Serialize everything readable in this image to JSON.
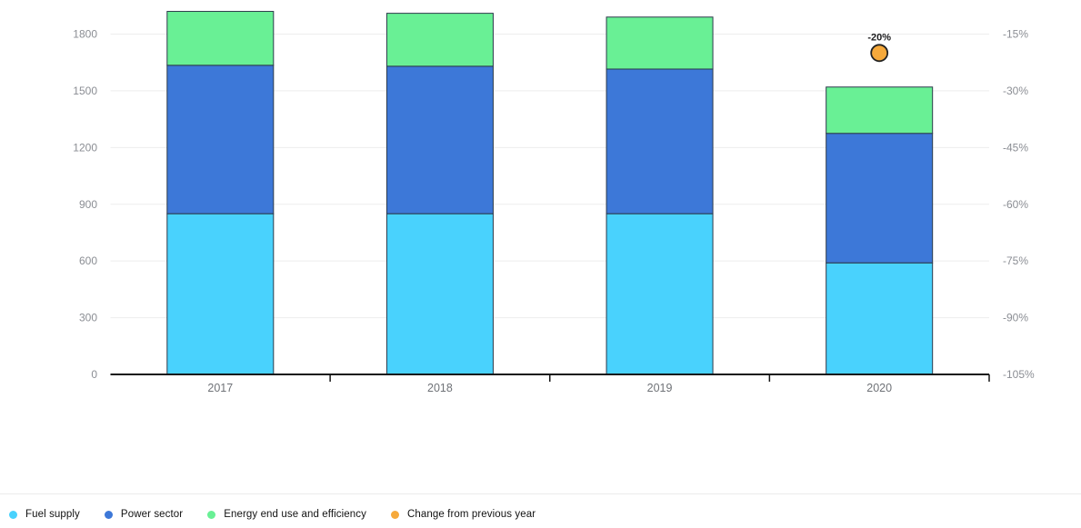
{
  "chart_data": {
    "type": "bar",
    "stacked": true,
    "title": "",
    "categories": [
      "2017",
      "2018",
      "2019",
      "2020"
    ],
    "series": [
      {
        "name": "Fuel supply",
        "color": "#49D2FD",
        "values": [
          850,
          850,
          850,
          590
        ]
      },
      {
        "name": "Power sector",
        "color": "#3D78D8",
        "values": [
          785,
          780,
          765,
          685
        ]
      },
      {
        "name": "Energy end use and efficiency",
        "color": "#69F095",
        "values": [
          285,
          280,
          275,
          245
        ]
      }
    ],
    "totals": [
      1920,
      1910,
      1890,
      1520
    ],
    "marker_series": {
      "name": "Change from previous year",
      "color": "#F6A93B",
      "points": [
        {
          "category": "2020",
          "value": -20,
          "label": "-20%"
        }
      ]
    },
    "left_axis": {
      "min": 0,
      "max": 1800,
      "step": 300,
      "ticks": [
        "1800",
        "1500",
        "1200",
        "900",
        "600",
        "300",
        "0"
      ]
    },
    "right_axis": {
      "min": -105,
      "max": -15,
      "step": 15,
      "ticks": [
        "-15%",
        "-30%",
        "-45%",
        "-60%",
        "-75%",
        "-90%",
        "-105%"
      ]
    },
    "grid": true,
    "legend_position": "bottom",
    "colors": {
      "gridline": "#ededed",
      "axis_line": "#161616",
      "bar_outline": "#2c3a4a",
      "marker_outline": "#222222",
      "axis_text": "#8b8e94",
      "category_text": "#6f7277"
    }
  },
  "legend": {
    "items": [
      {
        "label": "Fuel supply",
        "color": "#49D2FD"
      },
      {
        "label": "Power sector",
        "color": "#3D78D8"
      },
      {
        "label": "Energy end use and efficiency",
        "color": "#69F095"
      },
      {
        "label": "Change from previous year",
        "color": "#F6A93B"
      }
    ]
  }
}
